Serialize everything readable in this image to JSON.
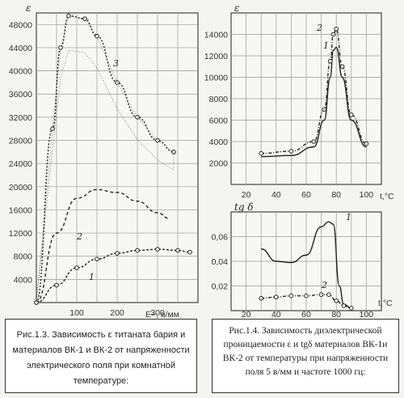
{
  "figure_left": {
    "y_symbol": "ε",
    "x_symbol": "E~, в/мм",
    "y_ticks": [
      "4000",
      "8000",
      "12000",
      "16000",
      "20000",
      "24000",
      "28000",
      "32000",
      "36000",
      "40000",
      "44000",
      "48000"
    ],
    "x_ticks": [
      "100",
      "200",
      "300"
    ],
    "curve_labels": [
      "1",
      "2",
      "3"
    ],
    "caption": "Рис.1.3. Зависимость ε титаната бария и материалов ВК-1 и ВК-2 от напряженности электрического поля при комнатной температуре:"
  },
  "figure_right_top": {
    "y_symbol": "ε",
    "x_symbol": "t,°C",
    "y_ticks": [
      "2000",
      "4000",
      "6000",
      "8000",
      "10000",
      "12000",
      "14000"
    ],
    "x_ticks": [
      "20",
      "40",
      "60",
      "80",
      "100"
    ],
    "curve_labels": [
      "2",
      "1"
    ]
  },
  "figure_right_bottom": {
    "y_symbol": "tg δ",
    "x_symbol": "t,°C",
    "y_ticks": [
      "0,02",
      "0,04",
      "0,06"
    ],
    "x_ticks": [
      "20",
      "40",
      "60",
      "80",
      "100"
    ],
    "curve_labels": [
      "1",
      "2"
    ],
    "caption": "Рис.1.4. Зависимость диэлектрической проницаемости ε и tgδ материалов ВК-1и ВК-2 от температуры при напряженности поля 5 в/мм и частоте 1000 гц:"
  },
  "chart_data": [
    {
      "type": "line",
      "xlabel": "E~, в/мм",
      "ylabel": "ε",
      "ylim": [
        0,
        50000
      ],
      "xlim": [
        0,
        400
      ],
      "series": [
        {
          "name": "1",
          "x": [
            0,
            50,
            100,
            150,
            200,
            250,
            300,
            350,
            380
          ],
          "y": [
            0,
            3000,
            6000,
            7500,
            8500,
            9000,
            9200,
            9000,
            8700
          ]
        },
        {
          "name": "2",
          "x": [
            0,
            50,
            100,
            150,
            200,
            250,
            300,
            330
          ],
          "y": [
            0,
            12000,
            18000,
            19500,
            19000,
            17500,
            15500,
            14500
          ]
        },
        {
          "name": "3",
          "x": [
            0,
            40,
            60,
            80,
            120,
            150,
            200,
            250,
            300,
            340
          ],
          "y": [
            0,
            30000,
            44000,
            49500,
            49000,
            46000,
            38000,
            32000,
            28000,
            26000
          ]
        }
      ]
    },
    {
      "type": "line",
      "xlabel": "t,°C",
      "ylabel": "ε",
      "ylim": [
        0,
        16000
      ],
      "xlim": [
        10,
        110
      ],
      "series": [
        {
          "name": "1",
          "x": [
            30,
            50,
            65,
            72,
            76,
            78,
            80,
            84,
            90,
            100
          ],
          "y": [
            2600,
            2700,
            3500,
            6000,
            10000,
            12500,
            12800,
            10000,
            6000,
            3500
          ]
        },
        {
          "name": "2",
          "x": [
            30,
            50,
            65,
            72,
            76,
            78,
            80,
            84,
            90,
            100
          ],
          "y": [
            2900,
            3100,
            4000,
            7000,
            11500,
            14000,
            14500,
            11000,
            6500,
            3800
          ]
        }
      ]
    },
    {
      "type": "line",
      "xlabel": "t,°C",
      "ylabel": "tg δ",
      "ylim": [
        0,
        0.08
      ],
      "xlim": [
        10,
        110
      ],
      "series": [
        {
          "name": "1",
          "x": [
            30,
            40,
            50,
            60,
            70,
            75,
            78,
            82,
            85,
            90
          ],
          "y": [
            0.05,
            0.04,
            0.039,
            0.045,
            0.068,
            0.072,
            0.07,
            0.02,
            0.005,
            0.002
          ]
        },
        {
          "name": "2",
          "x": [
            30,
            40,
            50,
            60,
            70,
            75,
            80,
            85,
            90
          ],
          "y": [
            0.01,
            0.011,
            0.012,
            0.012,
            0.013,
            0.013,
            0.008,
            0.004,
            0.002
          ]
        }
      ]
    }
  ]
}
